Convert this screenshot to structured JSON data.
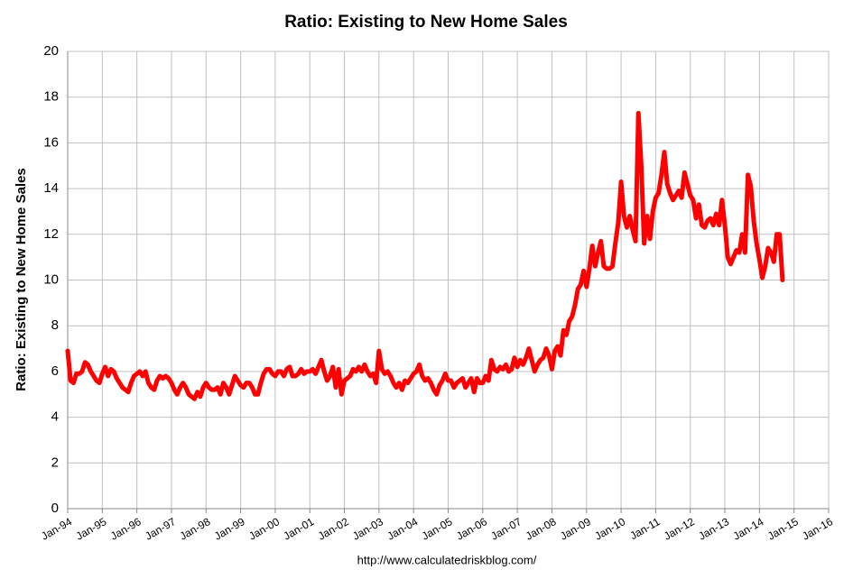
{
  "chart_data": {
    "type": "line",
    "title": "Ratio: Existing to New Home Sales",
    "y_label": "Ratio: Existing to New Home Sales",
    "source": "http://www.calculatedriskblog.com/",
    "color": "#ff0000",
    "grid": true,
    "ylim": [
      0,
      20
    ],
    "yticks": [
      0,
      2,
      4,
      6,
      8,
      10,
      12,
      14,
      16,
      18,
      20
    ],
    "categories": [
      "Jan-94",
      null,
      null,
      null,
      null,
      null,
      null,
      null,
      null,
      null,
      null,
      null,
      "Jan-95",
      null,
      null,
      null,
      null,
      null,
      null,
      null,
      null,
      null,
      null,
      null,
      "Jan-96",
      null,
      null,
      null,
      null,
      null,
      null,
      null,
      null,
      null,
      null,
      null,
      "Jan-97",
      null,
      null,
      null,
      null,
      null,
      null,
      null,
      null,
      null,
      null,
      null,
      "Jan-98",
      null,
      null,
      null,
      null,
      null,
      null,
      null,
      null,
      null,
      null,
      null,
      "Jan-99",
      null,
      null,
      null,
      null,
      null,
      null,
      null,
      null,
      null,
      null,
      null,
      "Jan-00",
      null,
      null,
      null,
      null,
      null,
      null,
      null,
      null,
      null,
      null,
      null,
      "Jan-01",
      null,
      null,
      null,
      null,
      null,
      null,
      null,
      null,
      null,
      null,
      null,
      "Jan-02",
      null,
      null,
      null,
      null,
      null,
      null,
      null,
      null,
      null,
      null,
      null,
      "Jan-03",
      null,
      null,
      null,
      null,
      null,
      null,
      null,
      null,
      null,
      null,
      null,
      "Jan-04",
      null,
      null,
      null,
      null,
      null,
      null,
      null,
      null,
      null,
      null,
      null,
      "Jan-05",
      null,
      null,
      null,
      null,
      null,
      null,
      null,
      null,
      null,
      null,
      null,
      "Jan-06",
      null,
      null,
      null,
      null,
      null,
      null,
      null,
      null,
      null,
      null,
      null,
      "Jan-07",
      null,
      null,
      null,
      null,
      null,
      null,
      null,
      null,
      null,
      null,
      null,
      "Jan-08",
      null,
      null,
      null,
      null,
      null,
      null,
      null,
      null,
      null,
      null,
      null,
      "Jan-09",
      null,
      null,
      null,
      null,
      null,
      null,
      null,
      null,
      null,
      null,
      null,
      "Jan-10",
      null,
      null,
      null,
      null,
      null,
      null,
      null,
      null,
      null,
      null,
      null,
      "Jan-11",
      null,
      null,
      null,
      null,
      null,
      null,
      null,
      null,
      null,
      null,
      null,
      "Jan-12",
      null,
      null,
      null,
      null,
      null,
      null,
      null,
      null,
      null,
      null,
      null,
      "Jan-13",
      null,
      null,
      null,
      null,
      null,
      null,
      null,
      null,
      null,
      null,
      null,
      "Jan-14",
      null,
      null,
      null,
      null,
      null,
      null,
      null,
      null,
      null,
      null,
      null,
      "Jan-15",
      null,
      null,
      null,
      null,
      null,
      null,
      null,
      null,
      null,
      null,
      null,
      "Jan-16"
    ],
    "values": [
      6.9,
      5.6,
      5.5,
      5.9,
      5.9,
      6.0,
      6.4,
      6.3,
      6.0,
      5.8,
      5.6,
      5.5,
      5.9,
      6.2,
      5.8,
      6.1,
      6.0,
      5.7,
      5.5,
      5.3,
      5.2,
      5.1,
      5.5,
      5.8,
      5.9,
      6.0,
      5.8,
      6.0,
      5.5,
      5.3,
      5.2,
      5.6,
      5.8,
      5.7,
      5.8,
      5.7,
      5.5,
      5.2,
      5.0,
      5.3,
      5.5,
      5.3,
      5.0,
      4.9,
      4.8,
      5.1,
      4.9,
      5.3,
      5.5,
      5.3,
      5.2,
      5.2,
      5.3,
      5.0,
      5.5,
      5.3,
      5.0,
      5.4,
      5.8,
      5.6,
      5.4,
      5.3,
      5.5,
      5.5,
      5.3,
      5.0,
      5.0,
      5.5,
      5.9,
      6.1,
      6.1,
      5.9,
      5.8,
      6.0,
      6.0,
      5.8,
      6.1,
      6.2,
      5.8,
      5.8,
      5.9,
      6.1,
      5.9,
      6.0,
      6.0,
      6.1,
      5.9,
      6.2,
      6.5,
      6.0,
      5.6,
      5.8,
      6.2,
      5.3,
      6.1,
      5.0,
      5.6,
      5.7,
      5.8,
      6.1,
      6.0,
      6.2,
      6.0,
      6.3,
      6.0,
      5.8,
      5.9,
      5.5,
      6.9,
      6.1,
      5.9,
      6.0,
      5.8,
      5.5,
      5.3,
      5.5,
      5.2,
      5.6,
      5.5,
      5.7,
      5.9,
      6.0,
      6.3,
      5.8,
      5.6,
      5.7,
      5.5,
      5.2,
      5.0,
      5.4,
      5.6,
      5.9,
      5.6,
      5.6,
      5.3,
      5.5,
      5.6,
      5.7,
      5.3,
      5.5,
      5.7,
      5.1,
      5.7,
      5.5,
      5.5,
      5.8,
      5.6,
      6.5,
      6.1,
      6.0,
      6.2,
      6.1,
      6.3,
      6.0,
      6.1,
      6.6,
      6.2,
      6.5,
      6.3,
      6.6,
      7.0,
      6.5,
      6.0,
      6.3,
      6.5,
      6.6,
      7.0,
      6.7,
      6.1,
      6.9,
      7.1,
      6.7,
      7.8,
      7.6,
      8.2,
      8.4,
      8.9,
      9.6,
      9.8,
      10.4,
      9.7,
      10.5,
      11.5,
      10.6,
      11.2,
      11.7,
      10.6,
      10.5,
      10.5,
      10.6,
      11.6,
      12.5,
      14.3,
      12.8,
      12.3,
      12.8,
      12.2,
      11.7,
      17.3,
      15.0,
      11.6,
      12.8,
      11.8,
      13.0,
      13.6,
      13.8,
      14.6,
      15.6,
      14.2,
      13.8,
      13.5,
      13.7,
      13.9,
      13.6,
      14.7,
      14.2,
      13.7,
      13.5,
      12.7,
      13.3,
      12.4,
      12.3,
      12.6,
      12.7,
      12.4,
      12.9,
      12.4,
      13.5,
      12.4,
      11.0,
      10.7,
      11.0,
      11.3,
      11.2,
      12.0,
      11.2,
      14.6,
      14.1,
      12.6,
      11.6,
      10.9,
      10.1,
      10.6,
      11.4,
      11.2,
      10.8,
      12.0,
      12.0,
      10.0,
      null,
      null,
      null,
      null,
      null,
      null,
      null,
      null,
      null,
      null,
      null,
      null,
      null,
      null,
      null,
      null
    ]
  }
}
